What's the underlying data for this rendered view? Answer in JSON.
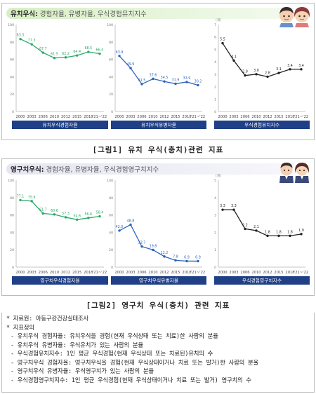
{
  "figure1": {
    "banner_title_strong": "유치우식:",
    "banner_title_light": " 경험자율, 유병자율, 우식경험유치지수",
    "caption": "[그림1] 유치 우식(충치)관련 지표"
  },
  "figure2": {
    "banner_title_strong": "영구치우식:",
    "banner_title_light": " 경험자율, 유병자율, 우식경험영구치지수",
    "caption": "[그림2] 영구치 우식(충치) 관련 지표"
  },
  "colors": {
    "green_line": "#2aa86a",
    "blue_line": "#2e63b8",
    "black_line": "#222222",
    "label_bar": "#1f3f86",
    "axis": "#aaaaaa"
  },
  "chart_data": [
    {
      "type": "line",
      "x": [
        "2000",
        "2003",
        "2006",
        "2010",
        "2012",
        "2015",
        "2018",
        "'21~'22"
      ],
      "values": [
        83.3,
        77.3,
        67.7,
        61.5,
        62.2,
        64.4,
        68.5,
        66.4
      ],
      "xlabel": "유치우식경험자율",
      "ylim": [
        0,
        100
      ],
      "yticks": [
        0,
        20,
        40,
        60,
        80,
        100
      ],
      "color": "#2aa86a"
    },
    {
      "type": "line",
      "x": [
        "2000",
        "2003",
        "2006",
        "2010",
        "2012",
        "2015",
        "2018",
        "'21~'22"
      ],
      "values": [
        63.9,
        49.9,
        31.5,
        37.6,
        34.5,
        31.9,
        33.9,
        30.2
      ],
      "xlabel": "유치우식유병자율",
      "ylim": [
        0,
        100
      ],
      "yticks": [
        0,
        20,
        40,
        60,
        80,
        100
      ],
      "color": "#2e63b8"
    },
    {
      "type": "line",
      "x": [
        "2000",
        "2003",
        "2006",
        "2010",
        "2012",
        "2015",
        "2018",
        "'21~'22"
      ],
      "values": [
        5.5,
        4.1,
        2.9,
        3.0,
        2.8,
        3.1,
        3.4,
        3.4
      ],
      "xlabel": "우식경험유치지수",
      "ylabel": "(개)",
      "ylim": [
        0,
        7
      ],
      "yticks": [
        0,
        1,
        2,
        3,
        4,
        5,
        6,
        7
      ],
      "color": "#222222"
    },
    {
      "type": "line",
      "x": [
        "2000",
        "2003",
        "2006",
        "2010",
        "2012",
        "2015",
        "2018",
        "'21~'22"
      ],
      "values": [
        77.1,
        75.9,
        61.7,
        60.6,
        57.3,
        54.6,
        56.6,
        58.4
      ],
      "xlabel": "영구치우식경험자율",
      "ylim": [
        0,
        100
      ],
      "yticks": [
        0,
        20,
        40,
        60,
        80,
        100
      ],
      "color": "#2aa86a"
    },
    {
      "type": "line",
      "x": [
        "2000",
        "2003",
        "2006",
        "2010",
        "2012",
        "2015",
        "2018",
        "'21~'22"
      ],
      "values": [
        42.0,
        48.8,
        23.7,
        19.8,
        12.2,
        7.8,
        6.9,
        6.9
      ],
      "xlabel": "영구치우식유병자율",
      "ylim": [
        0,
        100
      ],
      "yticks": [
        0,
        20,
        40,
        60,
        80,
        100
      ],
      "color": "#2e63b8"
    },
    {
      "type": "line",
      "x": [
        "2000",
        "2003",
        "2006",
        "2010",
        "2012",
        "2015",
        "2018",
        "'21~'22"
      ],
      "values": [
        3.3,
        3.3,
        2.2,
        2.1,
        1.8,
        1.8,
        1.8,
        1.9
      ],
      "xlabel": "우식경험영구치지수",
      "ylabel": "(개)",
      "ylim": [
        0,
        5
      ],
      "yticks": [
        0,
        1,
        2,
        3,
        4,
        5
      ],
      "color": "#222222"
    }
  ],
  "notes": {
    "source": "* 자료원: 아동구강건강실태조사",
    "definition_title": "* 지표정의",
    "lines": [
      "- 유치우식 경험자율: 유치우식을 경험(현재 우식상태 또는 치료)한 사람의 분율",
      "- 유치우식 유병자율: 우식유치가 있는 사람의 분율",
      "- 우식경험유치지수: 1인 평균 우식경험(현재 우식상태 또는 치료된)유치의 수",
      "- 영구치우식 경험자율: 영구치우식을 경험(현재 우식상태이거나 치료 또는 발거)한 사람의 분율",
      "- 영구치우식 유병자율: 우식영구치가 있는 사람의 분율",
      "- 우식경험영구치지수: 1인 평균 우식경험(현재 우식상태이거나 치료 또는 발거) 영구치의 수"
    ]
  }
}
